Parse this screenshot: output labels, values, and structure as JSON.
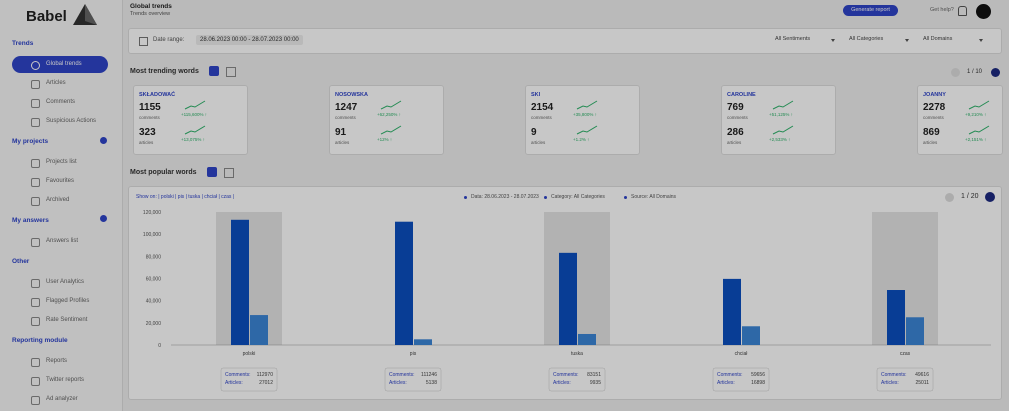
{
  "sidebar": {
    "logo": "Babel",
    "sections": [
      {
        "title": "Trends",
        "items": [
          "Global trends",
          "Articles",
          "Comments",
          "Suspicious Actions"
        ]
      },
      {
        "title": "My projects",
        "items": [
          "Projects list",
          "Favourites",
          "Archived"
        ]
      },
      {
        "title": "My answers",
        "items": [
          "Answers list"
        ]
      },
      {
        "title": "Other",
        "items": [
          "User Analytics",
          "Flagged Profiles",
          "Rate Sentiment"
        ]
      },
      {
        "title": "Reporting module",
        "items": [
          "Reports",
          "Twitter reports",
          "Ad analyzer"
        ]
      }
    ]
  },
  "header": {
    "title": "Global trends",
    "subtitle": "Trends overview",
    "button": "Generate report",
    "help": "Get help?"
  },
  "filters": {
    "label": "Date range:",
    "range": "28.06.2023 00:00 - 28.07.2023 00:00",
    "selects": [
      "All Sentiments",
      "All Categories",
      "All Domains"
    ]
  },
  "trending": {
    "title": "Most trending words",
    "pager": "1 / 10",
    "cards": [
      {
        "word": "SKŁADOWAĆ",
        "comments": 1155,
        "comments_label": "comments",
        "comments_change": "+115,600% ↑",
        "articles": 323,
        "articles_label": "articles",
        "articles_change": "+13,075% ↑"
      },
      {
        "word": "NOSOWSKA",
        "comments": 1247,
        "comments_label": "comments",
        "comments_change": "+62,250% ↑",
        "articles": 91,
        "articles_label": "articles",
        "articles_change": "+12% ↑"
      },
      {
        "word": "SKI",
        "comments": 2154,
        "comments_label": "comments",
        "comments_change": "+35,800% ↑",
        "articles": 9,
        "articles_label": "articles",
        "articles_change": "+1.2% ↑"
      },
      {
        "word": "CAROLINE",
        "comments": 769,
        "comments_label": "comments",
        "comments_change": "+51,125% ↑",
        "articles": 286,
        "articles_label": "articles",
        "articles_change": "+2,533% ↑"
      },
      {
        "word": "JOANNY",
        "comments": 2278,
        "comments_label": "comments",
        "comments_change": "+9,210% ↑",
        "articles": 869,
        "articles_label": "articles",
        "articles_change": "+2,151% ↑"
      }
    ]
  },
  "popular": {
    "title": "Most popular words",
    "show_on": "Show on: | polski | pis | tuska | chciał | czas |",
    "legend": [
      "Data: 28.06.2023 - 28.07.2023",
      "Category: All Categories",
      "Source: All Domains"
    ],
    "pager": "1 / 20"
  },
  "chart_data": {
    "type": "bar",
    "categories": [
      "polski",
      "pis",
      "tuska",
      "chciał",
      "czas"
    ],
    "series": [
      {
        "name": "Comments:",
        "color": "#0b4fbf",
        "values": [
          112970,
          111246,
          83151,
          59656,
          49616
        ]
      },
      {
        "name": "Articles:",
        "color": "#3b86d6",
        "values": [
          27012,
          5138,
          9935,
          16898,
          25011
        ]
      }
    ],
    "ylim": [
      0,
      120000
    ],
    "yticks": [
      0,
      {
        "value": 20000,
        "label": "20,000"
      },
      {
        "value": 40000,
        "label": "40,000"
      },
      {
        "value": 60000,
        "label": "60,000"
      },
      {
        "value": 80000,
        "label": "80,000"
      },
      {
        "value": 100000,
        "label": "100,000"
      },
      {
        "value": 120000,
        "label": "120,000"
      }
    ],
    "grid": false
  }
}
